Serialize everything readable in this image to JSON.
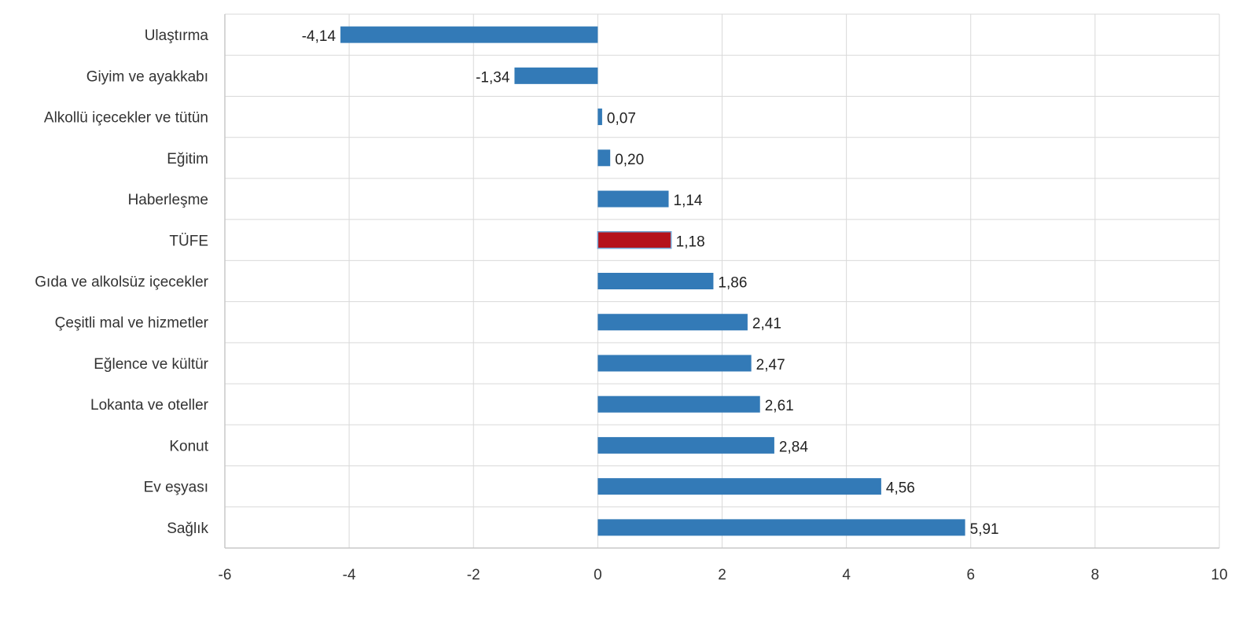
{
  "chart_data": {
    "type": "bar",
    "orientation": "horizontal",
    "title": "",
    "xlabel": "",
    "ylabel": "",
    "categories": [
      "Ulaştırma",
      "Giyim ve ayakkabı",
      "Alkollü içecekler ve tütün",
      "Eğitim",
      "Haberleşme",
      "TÜFE",
      "Gıda ve alkolsüz içecekler",
      "Çeşitli mal ve hizmetler",
      "Eğlence ve kültür",
      "Lokanta ve oteller",
      "Konut",
      "Ev eşyası",
      "Sağlık"
    ],
    "values": [
      -4.14,
      -1.34,
      0.07,
      0.2,
      1.14,
      1.18,
      1.86,
      2.41,
      2.47,
      2.61,
      2.84,
      4.56,
      5.91
    ],
    "value_labels": [
      "-4,14",
      "-1,34",
      "0,07",
      "0,20",
      "1,14",
      "1,18",
      "1,86",
      "2,41",
      "2,47",
      "2,61",
      "2,84",
      "4,56",
      "5,91"
    ],
    "xlim": [
      -6,
      10
    ],
    "xticks": [
      -6,
      -4,
      -2,
      0,
      2,
      4,
      6,
      8,
      10
    ],
    "grid": true,
    "legend": "none",
    "colors": {
      "bar": "#337ab7",
      "highlight": "#b5121b",
      "highlight_border": "#6fa0d0"
    },
    "highlight_category": "TÜFE"
  }
}
